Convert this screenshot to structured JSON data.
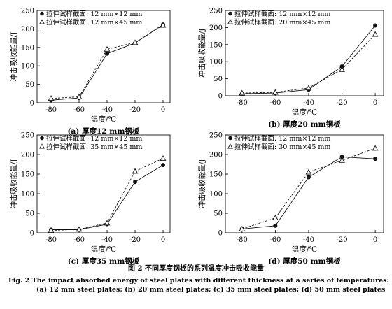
{
  "figure_caption_cn": "图 2   不同厚度钢板的系列温度冲击吸收能量",
  "figure_caption_en_1": "Fig. 2    The impact absorbed energy of steel plates with different thickness at a series of temperatures:",
  "figure_caption_en_2": "(a) 12 mm steel plates; (b) 20 mm steel plates; (c) 35 mm steel plates; (d) 50 mm steel plates",
  "colors": {
    "line": "#111111",
    "background": "#ffffff"
  },
  "chart_data": [
    {
      "type": "line",
      "subtitle": "(a) 厚度12 mm钢板",
      "xlabel": "温度/℃",
      "ylabel": "冲击吸收能量/J",
      "xlim": [
        -90,
        5
      ],
      "ylim": [
        0,
        250
      ],
      "xticks": [
        -80,
        -60,
        -40,
        -20,
        0
      ],
      "yticks": [
        0,
        50,
        100,
        150,
        200,
        250
      ],
      "legend_position": "top-left",
      "series": [
        {
          "name": "拉伸试样截面: 12 mm×12 mm",
          "marker": "filled-circle",
          "style": "solid",
          "x": [
            -80,
            -60,
            -40,
            -20,
            0
          ],
          "y": [
            7,
            13,
            133,
            162,
            212
          ]
        },
        {
          "name": "拉伸试样截面: 12 mm×45 mm",
          "marker": "open-triangle",
          "style": "dashed",
          "x": [
            -80,
            -60,
            -40,
            -20,
            0
          ],
          "y": [
            12,
            16,
            145,
            163,
            210
          ]
        }
      ]
    },
    {
      "type": "line",
      "subtitle": "(b) 厚度20 mm钢板",
      "xlabel": "温度/℃",
      "ylabel": "冲击吸收能量/J",
      "xlim": [
        -90,
        5
      ],
      "ylim": [
        0,
        250
      ],
      "xticks": [
        -80,
        -60,
        -40,
        -20,
        0
      ],
      "yticks": [
        0,
        50,
        100,
        150,
        200,
        250
      ],
      "legend_position": "top-left",
      "series": [
        {
          "name": "拉伸试样截面: 12 mm×12 mm",
          "marker": "filled-circle",
          "style": "solid",
          "x": [
            -80,
            -60,
            -40,
            -20,
            0
          ],
          "y": [
            6,
            8,
            18,
            86,
            206
          ]
        },
        {
          "name": "拉伸试样截面: 20 mm×45 mm",
          "marker": "open-triangle",
          "style": "dashed",
          "x": [
            -80,
            -60,
            -40,
            -20,
            0
          ],
          "y": [
            8,
            10,
            23,
            77,
            180
          ]
        }
      ]
    },
    {
      "type": "line",
      "subtitle": "(c) 厚度35 mm钢板",
      "xlabel": "温度/℃",
      "ylabel": "冲击吸收能量/J",
      "xlim": [
        -90,
        5
      ],
      "ylim": [
        0,
        250
      ],
      "xticks": [
        -80,
        -60,
        -40,
        -20,
        0
      ],
      "yticks": [
        0,
        50,
        100,
        150,
        200,
        250
      ],
      "legend_position": "top-left",
      "series": [
        {
          "name": "拉伸试样截面: 12 mm×12 mm",
          "marker": "filled-circle",
          "style": "solid",
          "x": [
            -80,
            -60,
            -40,
            -20,
            0
          ],
          "y": [
            8,
            8,
            22,
            130,
            173
          ]
        },
        {
          "name": "拉伸试样截面: 35 mm×45 mm",
          "marker": "open-triangle",
          "style": "dashed",
          "x": [
            -80,
            -60,
            -40,
            -20,
            0
          ],
          "y": [
            6,
            9,
            25,
            157,
            190
          ]
        }
      ]
    },
    {
      "type": "line",
      "subtitle": "(d) 厚度50 mm钢板",
      "xlabel": "温度/℃",
      "ylabel": "冲击吸收能量/J",
      "xlim": [
        -90,
        5
      ],
      "ylim": [
        0,
        250
      ],
      "xticks": [
        -80,
        -60,
        -40,
        -20,
        0
      ],
      "yticks": [
        0,
        50,
        100,
        150,
        200,
        250
      ],
      "legend_position": "top-left",
      "series": [
        {
          "name": "拉伸试样截面: 12 mm×12 mm",
          "marker": "filled-circle",
          "style": "solid",
          "x": [
            -80,
            -60,
            -40,
            -20,
            0
          ],
          "y": [
            10,
            18,
            142,
            194,
            189
          ]
        },
        {
          "name": "拉伸试样截面: 30 mm×45 mm",
          "marker": "open-triangle",
          "style": "dashed",
          "x": [
            -80,
            -60,
            -40,
            -20,
            0
          ],
          "y": [
            10,
            38,
            155,
            185,
            216
          ]
        }
      ]
    }
  ]
}
